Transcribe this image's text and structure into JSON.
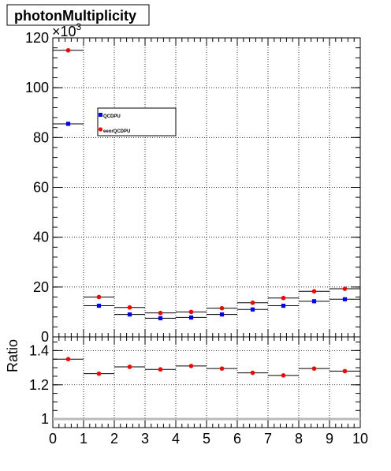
{
  "title": "photonMultiplicity",
  "chart_data": [
    {
      "type": "scatter",
      "title": "photonMultiplicity",
      "xlabel": "",
      "ylabel": "",
      "y_exponent_label": "×10",
      "y_exponent": "3",
      "xlim": [
        0,
        10
      ],
      "ylim": [
        0,
        120
      ],
      "x_ticks": [
        "0",
        "1",
        "2",
        "3",
        "4",
        "5",
        "6",
        "7",
        "8",
        "9",
        "10"
      ],
      "y_ticks": [
        "0",
        "20",
        "40",
        "60",
        "80",
        "100",
        "120"
      ],
      "grid": true,
      "legend_position": "upper-left",
      "series": [
        {
          "name": "QCDPU",
          "color": "#0000ff",
          "marker": "square",
          "x": [
            0.5,
            1.5,
            2.5,
            3.5,
            4.5,
            5.5,
            6.5,
            7.5,
            8.5,
            9.5
          ],
          "values": [
            85.5,
            12.5,
            9.0,
            7.5,
            7.8,
            9.0,
            11.0,
            12.5,
            14.3,
            15.1
          ]
        },
        {
          "name": "eeorQCDPU",
          "color": "#ff0000",
          "marker": "circle",
          "x": [
            0.5,
            1.5,
            2.5,
            3.5,
            4.5,
            5.5,
            6.5,
            7.5,
            8.5,
            9.5
          ],
          "values": [
            115.0,
            16.0,
            11.8,
            9.6,
            10.0,
            11.5,
            13.7,
            15.6,
            18.3,
            19.3
          ]
        }
      ]
    },
    {
      "type": "scatter",
      "ylabel": "Ratio",
      "xlim": [
        0,
        10
      ],
      "ylim": [
        0.95,
        1.48
      ],
      "x_ticks": [
        "0",
        "1",
        "2",
        "3",
        "4",
        "5",
        "6",
        "7",
        "8",
        "9",
        "10"
      ],
      "y_ticks": [
        "1",
        "1.2",
        "1.4"
      ],
      "grid": true,
      "reference_line": 1.0,
      "series": [
        {
          "name": "",
          "color": "#ff0000",
          "marker": "circle",
          "x": [
            0.5,
            1.5,
            2.5,
            3.5,
            4.5,
            5.5,
            6.5,
            7.5,
            8.5,
            9.5
          ],
          "values": [
            1.35,
            1.265,
            1.305,
            1.29,
            1.31,
            1.295,
            1.27,
            1.255,
            1.295,
            1.28
          ]
        }
      ]
    }
  ]
}
